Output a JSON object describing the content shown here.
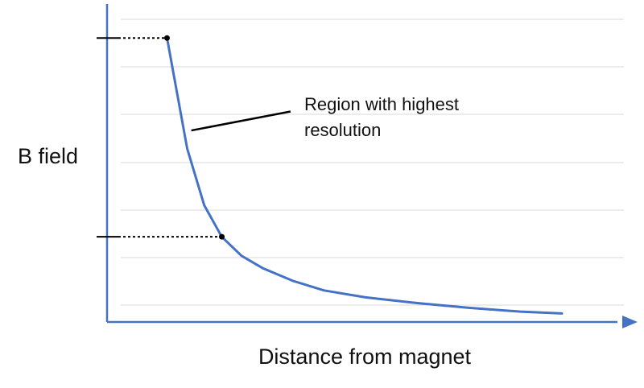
{
  "chart_data": {
    "type": "line",
    "title": "",
    "xlabel": "Distance from magnet",
    "ylabel": "B field",
    "xlim": [
      0,
      1
    ],
    "ylim": [
      0,
      1
    ],
    "grid": true,
    "x_axis_arrow": true,
    "colors": {
      "series": "#4472C4",
      "axis": "#4472C4",
      "grid": "#D9D9D9",
      "annotation": "#000000"
    },
    "series": [
      {
        "values": [
          [
            0.116,
            0.9
          ],
          [
            0.155,
            0.55
          ],
          [
            0.188,
            0.37
          ],
          [
            0.222,
            0.27
          ],
          [
            0.26,
            0.21
          ],
          [
            0.302,
            0.17
          ],
          [
            0.36,
            0.13
          ],
          [
            0.42,
            0.1
          ],
          [
            0.5,
            0.078
          ],
          [
            0.6,
            0.06
          ],
          [
            0.7,
            0.045
          ],
          [
            0.8,
            0.033
          ],
          [
            0.88,
            0.027
          ]
        ]
      }
    ],
    "marked_points": [
      [
        0.116,
        0.9
      ],
      [
        0.222,
        0.27
      ]
    ],
    "annotation": {
      "text_lines": [
        "Region with highest",
        "resolution"
      ],
      "pointer_from": [
        0.355,
        0.667
      ],
      "pointer_to": [
        0.163,
        0.607
      ]
    }
  }
}
